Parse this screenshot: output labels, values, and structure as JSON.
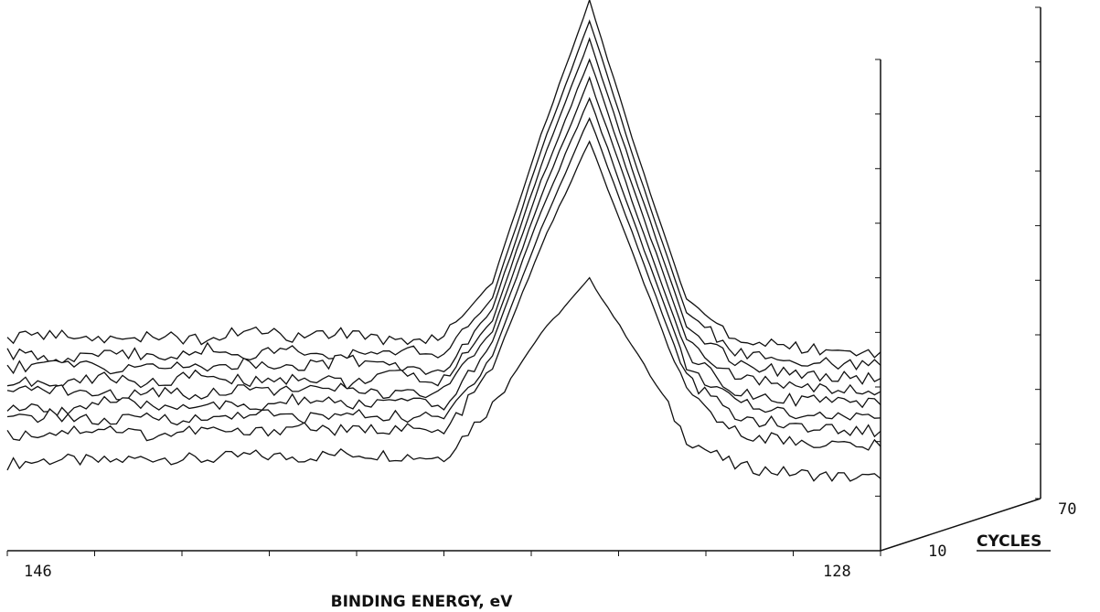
{
  "chart_data": {
    "type": "line",
    "style": "3d-waterfall",
    "grid": false,
    "xlabel": "BINDING ENERGY, eV",
    "xlim": [
      146,
      128
    ],
    "x_tick_labels": [
      "146",
      "128"
    ],
    "zlabel": "CYCLES",
    "z_tick_labels": [
      "10",
      "70"
    ],
    "zlim": [
      10,
      70
    ],
    "x": [
      146,
      145,
      144,
      143,
      142,
      141,
      140,
      139,
      138,
      137,
      136,
      135,
      134,
      133,
      132,
      131,
      130,
      129,
      128
    ],
    "series": [
      {
        "values": [
          0.1,
          0.12,
          0.11,
          0.13,
          0.12,
          0.14,
          0.13,
          0.15,
          0.14,
          0.13,
          0.38,
          0.72,
          0.98,
          0.62,
          0.22,
          0.09,
          0.06,
          0.04,
          0.03
        ]
      },
      {
        "values": [
          0.2,
          0.22,
          0.24,
          0.2,
          0.23,
          0.21,
          0.25,
          0.22,
          0.24,
          0.21,
          0.52,
          1.1,
          1.6,
          1.0,
          0.4,
          0.22,
          0.18,
          0.16,
          0.15
        ]
      },
      {
        "values": [
          0.24,
          0.27,
          0.23,
          0.26,
          0.24,
          0.28,
          0.25,
          0.27,
          0.26,
          0.25,
          0.55,
          1.15,
          1.68,
          1.06,
          0.44,
          0.26,
          0.22,
          0.2,
          0.19
        ]
      },
      {
        "values": [
          0.27,
          0.25,
          0.3,
          0.27,
          0.29,
          0.26,
          0.31,
          0.28,
          0.3,
          0.27,
          0.58,
          1.2,
          1.74,
          1.1,
          0.47,
          0.29,
          0.25,
          0.23,
          0.22
        ]
      },
      {
        "values": [
          0.3,
          0.33,
          0.29,
          0.32,
          0.3,
          0.34,
          0.31,
          0.33,
          0.29,
          0.31,
          0.6,
          1.24,
          1.8,
          1.14,
          0.5,
          0.32,
          0.28,
          0.26,
          0.25
        ]
      },
      {
        "values": [
          0.33,
          0.31,
          0.35,
          0.32,
          0.36,
          0.33,
          0.35,
          0.32,
          0.36,
          0.33,
          0.62,
          1.28,
          1.86,
          1.18,
          0.53,
          0.35,
          0.31,
          0.29,
          0.28
        ]
      },
      {
        "values": [
          0.36,
          0.39,
          0.35,
          0.38,
          0.35,
          0.39,
          0.36,
          0.4,
          0.37,
          0.35,
          0.64,
          1.32,
          1.92,
          1.22,
          0.56,
          0.38,
          0.34,
          0.32,
          0.31
        ]
      },
      {
        "values": [
          0.4,
          0.37,
          0.41,
          0.38,
          0.42,
          0.39,
          0.42,
          0.38,
          0.41,
          0.39,
          0.66,
          1.36,
          1.98,
          1.26,
          0.59,
          0.41,
          0.37,
          0.35,
          0.34
        ]
      },
      {
        "values": [
          0.43,
          0.46,
          0.42,
          0.45,
          0.43,
          0.47,
          0.44,
          0.46,
          0.42,
          0.45,
          0.7,
          1.4,
          2.04,
          1.3,
          0.62,
          0.44,
          0.4,
          0.38,
          0.37
        ]
      }
    ]
  }
}
